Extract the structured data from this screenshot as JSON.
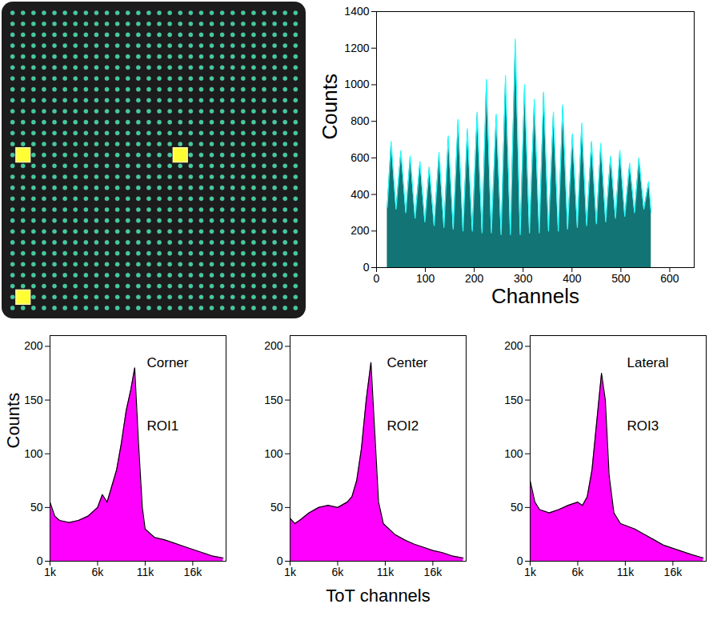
{
  "chart_data": [
    {
      "type": "image",
      "rows": 28,
      "cols": 28,
      "color": "#3fcf8e",
      "rois": [
        {
          "col": 1,
          "row": 13
        },
        {
          "col": 16,
          "row": 13
        },
        {
          "col": 1,
          "row": 26
        }
      ]
    },
    {
      "type": "area",
      "xlabel": "Channels",
      "ylabel": "Counts",
      "color": "#127474",
      "x": [
        22,
        30,
        40,
        50,
        60,
        69,
        79,
        89,
        99,
        108,
        118,
        128,
        138,
        147,
        157,
        167,
        177,
        186,
        196,
        206,
        216,
        225,
        235,
        245,
        255,
        264,
        274,
        284,
        294,
        303,
        313,
        323,
        333,
        342,
        352,
        362,
        372,
        381,
        391,
        401,
        411,
        420,
        430,
        440,
        450,
        459,
        469,
        479,
        489,
        498,
        508,
        518,
        528,
        537,
        547,
        557,
        562
      ],
      "values": [
        330,
        690,
        320,
        640,
        300,
        610,
        270,
        580,
        250,
        550,
        230,
        630,
        220,
        720,
        210,
        810,
        200,
        760,
        200,
        850,
        190,
        1030,
        190,
        840,
        180,
        1050,
        180,
        1250,
        180,
        1000,
        190,
        920,
        190,
        960,
        200,
        850,
        200,
        890,
        210,
        730,
        220,
        790,
        230,
        690,
        240,
        680,
        250,
        610,
        270,
        640,
        280,
        570,
        300,
        600,
        320,
        470,
        300
      ],
      "xlim": [
        0,
        650
      ],
      "xticks": [
        0,
        100,
        200,
        300,
        400,
        500,
        600
      ],
      "ylim": [
        0,
        1400
      ],
      "yticks": [
        0,
        200,
        400,
        600,
        800,
        1000,
        1200,
        1400
      ]
    },
    {
      "type": "area",
      "ylabel": "Counts",
      "annotations": [
        "Corner",
        "ROI1"
      ],
      "color": "#ff00ff",
      "x": [
        1000,
        1500,
        2000,
        3000,
        4000,
        5000,
        6000,
        6500,
        7000,
        7500,
        8000,
        8500,
        9000,
        9500,
        9900,
        10300,
        10700,
        11000,
        12000,
        13000,
        14000,
        15000,
        16000,
        17000,
        18000,
        19200
      ],
      "values": [
        55,
        42,
        38,
        36,
        38,
        42,
        50,
        62,
        55,
        70,
        85,
        110,
        140,
        160,
        180,
        110,
        50,
        30,
        22,
        20,
        17,
        14,
        11,
        8,
        5,
        3
      ],
      "xlim": [
        1000,
        19500
      ],
      "xticks": [
        {
          "value": 1000,
          "label": "1k"
        },
        {
          "value": 6000,
          "label": "6k"
        },
        {
          "value": 11000,
          "label": "11k"
        },
        {
          "value": 16000,
          "label": "16k"
        }
      ],
      "ylim": [
        0,
        210
      ],
      "yticks": [
        0,
        50,
        100,
        150,
        200
      ]
    },
    {
      "type": "area",
      "xlabel": "ToT channels",
      "annotations": [
        "Center",
        "ROI2"
      ],
      "color": "#ff00ff",
      "x": [
        1000,
        1500,
        2000,
        3000,
        4000,
        5000,
        6000,
        7000,
        7500,
        8000,
        8500,
        9000,
        9500,
        9900,
        10300,
        10800,
        12000,
        13000,
        14000,
        15000,
        16000,
        17000,
        18000,
        19200
      ],
      "values": [
        40,
        35,
        38,
        45,
        50,
        52,
        50,
        55,
        60,
        75,
        105,
        150,
        185,
        120,
        55,
        35,
        25,
        20,
        16,
        13,
        10,
        8,
        5,
        3
      ],
      "xlim": [
        1000,
        19500
      ],
      "xticks": [
        {
          "value": 1000,
          "label": "1k"
        },
        {
          "value": 6000,
          "label": "6k"
        },
        {
          "value": 11000,
          "label": "11k"
        },
        {
          "value": 16000,
          "label": "16k"
        }
      ],
      "ylim": [
        0,
        210
      ],
      "yticks": [
        0,
        50,
        100,
        150,
        200
      ]
    },
    {
      "type": "area",
      "annotations": [
        "Lateral",
        "ROI3"
      ],
      "color": "#ff00ff",
      "x": [
        1000,
        1500,
        2000,
        3000,
        4000,
        5000,
        6000,
        6500,
        7000,
        7500,
        8000,
        8500,
        8900,
        9300,
        9800,
        10500,
        12000,
        13000,
        14000,
        15000,
        16000,
        17000,
        18000,
        19200
      ],
      "values": [
        75,
        55,
        48,
        45,
        48,
        52,
        55,
        52,
        60,
        85,
        130,
        175,
        150,
        80,
        45,
        35,
        30,
        25,
        20,
        15,
        12,
        9,
        6,
        3
      ],
      "xlim": [
        1000,
        19500
      ],
      "xticks": [
        {
          "value": 1000,
          "label": "1k"
        },
        {
          "value": 6000,
          "label": "6k"
        },
        {
          "value": 11000,
          "label": "11k"
        },
        {
          "value": 16000,
          "label": "16k"
        }
      ],
      "ylim": [
        0,
        210
      ],
      "yticks": [
        0,
        50,
        100,
        150,
        200
      ]
    }
  ]
}
